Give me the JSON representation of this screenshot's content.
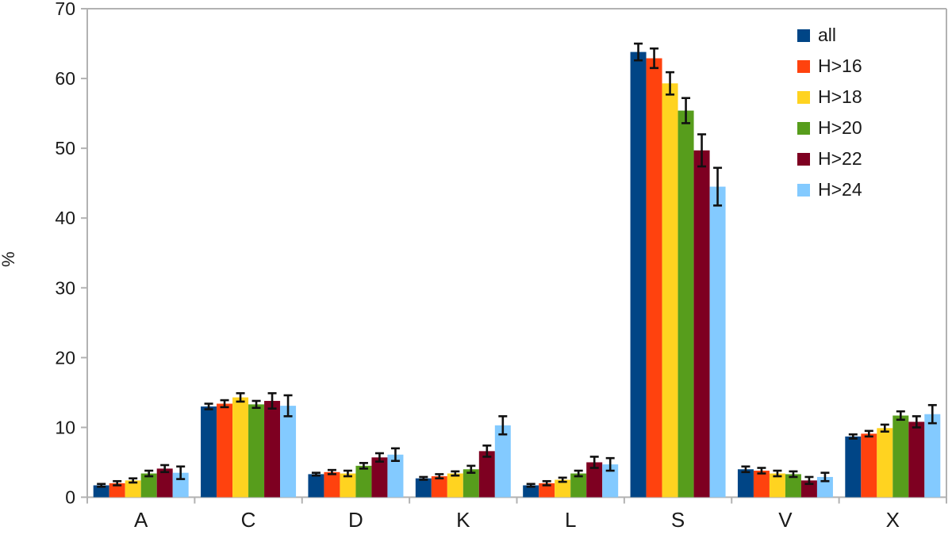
{
  "chart_data": {
    "type": "bar",
    "title": "",
    "xlabel": "",
    "ylabel": "%",
    "ylim": [
      0,
      70
    ],
    "yticks": [
      0,
      10,
      20,
      30,
      40,
      50,
      60,
      70
    ],
    "grid": false,
    "legend_position": "top-right-inside",
    "error_bars": true,
    "categories": [
      "A",
      "C",
      "D",
      "K",
      "L",
      "S",
      "V",
      "X"
    ],
    "series": [
      {
        "name": "all",
        "color": "#004586",
        "values": [
          1.7,
          13.0,
          3.3,
          2.7,
          1.7,
          63.8,
          4.0,
          8.7
        ],
        "errors": [
          0.2,
          0.4,
          0.2,
          0.2,
          0.2,
          1.2,
          0.4,
          0.3
        ]
      },
      {
        "name": "H>16",
        "color": "#ff420e",
        "values": [
          2.0,
          13.4,
          3.6,
          3.0,
          2.0,
          62.9,
          3.8,
          9.1
        ],
        "errors": [
          0.3,
          0.5,
          0.3,
          0.3,
          0.3,
          1.4,
          0.4,
          0.4
        ]
      },
      {
        "name": "H>18",
        "color": "#ffd320",
        "values": [
          2.4,
          14.3,
          3.4,
          3.4,
          2.5,
          59.3,
          3.4,
          9.9
        ],
        "errors": [
          0.3,
          0.6,
          0.4,
          0.3,
          0.3,
          1.6,
          0.4,
          0.5
        ]
      },
      {
        "name": "H>20",
        "color": "#579d1c",
        "values": [
          3.4,
          13.3,
          4.5,
          4.0,
          3.4,
          55.4,
          3.3,
          11.7
        ],
        "errors": [
          0.4,
          0.5,
          0.4,
          0.5,
          0.4,
          1.8,
          0.4,
          0.6
        ]
      },
      {
        "name": "H>22",
        "color": "#7e0021",
        "values": [
          4.1,
          13.8,
          5.7,
          6.6,
          5.0,
          49.7,
          2.4,
          10.8
        ],
        "errors": [
          0.5,
          1.1,
          0.6,
          0.8,
          0.8,
          2.3,
          0.5,
          0.8
        ]
      },
      {
        "name": "H>24",
        "color": "#83caff",
        "values": [
          3.5,
          13.1,
          6.1,
          10.3,
          4.7,
          44.5,
          2.9,
          11.9
        ],
        "errors": [
          0.9,
          1.5,
          0.9,
          1.3,
          0.9,
          2.7,
          0.6,
          1.3
        ]
      }
    ]
  },
  "colors": {
    "axis": "#b2b2b2",
    "text": "#1a1a1a",
    "error_bar": "#111111",
    "background": "#ffffff"
  }
}
